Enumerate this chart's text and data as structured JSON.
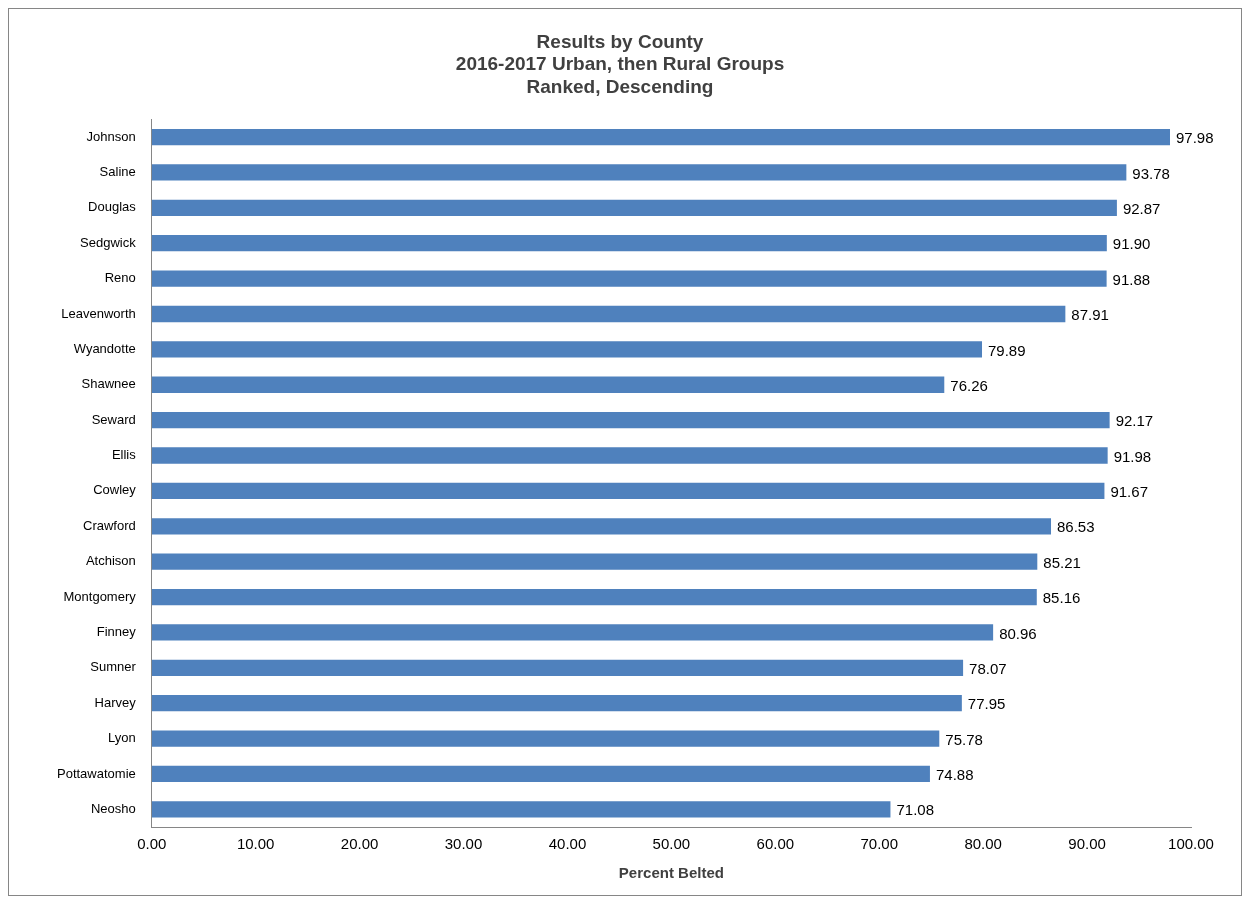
{
  "chart_data": {
    "type": "bar",
    "orientation": "horizontal",
    "title": [
      "Results by County",
      "2016-2017 Urban, then Rural Groups",
      "Ranked, Descending"
    ],
    "xlabel": "Percent Belted",
    "categories": [
      "Johnson",
      "Saline",
      "Douglas",
      "Sedgwick",
      "Reno",
      "Leavenworth",
      "Wyandotte",
      "Shawnee",
      "Seward",
      "Ellis",
      "Cowley",
      "Crawford",
      "Atchison",
      "Montgomery",
      "Finney",
      "Sumner",
      "Harvey",
      "Lyon",
      "Pottawatomie",
      "Neosho"
    ],
    "values": [
      97.98,
      93.78,
      92.87,
      91.9,
      91.88,
      87.91,
      79.89,
      76.26,
      92.17,
      91.98,
      91.67,
      86.53,
      85.21,
      85.16,
      80.96,
      78.07,
      77.95,
      75.78,
      74.88,
      71.08
    ],
    "value_labels": [
      "97.98",
      "93.78",
      "92.87",
      "91.90",
      "91.88",
      "87.91",
      "79.89",
      "76.26",
      "92.17",
      "91.98",
      "91.67",
      "86.53",
      "85.21",
      "85.16",
      "80.96",
      "78.07",
      "77.95",
      "75.78",
      "74.88",
      "71.08"
    ],
    "color": "#4f81bd",
    "xlim": [
      0,
      100
    ],
    "xticks": [
      {
        "value": 0,
        "label": "0.00"
      },
      {
        "value": 10,
        "label": "10.00"
      },
      {
        "value": 20,
        "label": "20.00"
      },
      {
        "value": 30,
        "label": "30.00"
      },
      {
        "value": 40,
        "label": "40.00"
      },
      {
        "value": 50,
        "label": "50.00"
      },
      {
        "value": 60,
        "label": "60.00"
      },
      {
        "value": 70,
        "label": "70.00"
      },
      {
        "value": 80,
        "label": "80.00"
      },
      {
        "value": 90,
        "label": "90.00"
      },
      {
        "value": 100,
        "label": "100.00"
      }
    ],
    "grid": false,
    "legend": false
  }
}
